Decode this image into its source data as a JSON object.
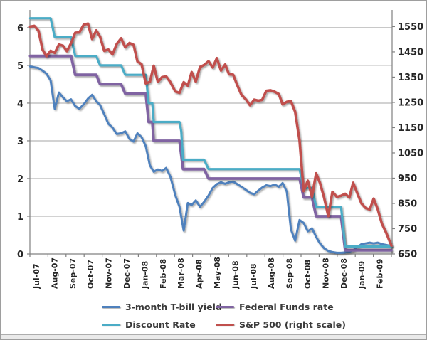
{
  "chart_data": {
    "type": "line",
    "title": "",
    "x_axis": {
      "tick_labels": [
        "Jul-07",
        "Aug-07",
        "Sep-07",
        "Oct-07",
        "Nov-07",
        "Dec-07",
        "Jan-08",
        "Feb-08",
        "Mar-08",
        "Apr-08",
        "May-08",
        "Jun-08",
        "Jul-08",
        "Aug-08",
        "Sep-08",
        "Oct-08",
        "Nov-08",
        "Dec-08",
        "Jan-09",
        "Feb-09"
      ]
    },
    "left_axis": {
      "min": 0,
      "max": 6.47,
      "ticks": [
        0,
        1,
        2,
        3,
        4,
        5,
        6
      ]
    },
    "right_axis": {
      "min": 650,
      "max": 1616,
      "ticks": [
        650,
        750,
        850,
        950,
        1050,
        1150,
        1250,
        1350,
        1450,
        1550
      ]
    },
    "grid": "horizontal",
    "legend": {
      "position": "bottom",
      "layout": [
        [
          0,
          1
        ],
        [
          2,
          3
        ]
      ]
    },
    "series": [
      {
        "name": "3-month T-bill yield",
        "color": "#4F81BD",
        "axis": "left",
        "points": [
          [
            "2007-07-06",
            4.97
          ],
          [
            "2007-07-13",
            4.95
          ],
          [
            "2007-07-20",
            4.93
          ],
          [
            "2007-07-27",
            4.86
          ],
          [
            "2007-08-03",
            4.78
          ],
          [
            "2007-08-10",
            4.6
          ],
          [
            "2007-08-17",
            3.85
          ],
          [
            "2007-08-24",
            4.28
          ],
          [
            "2007-08-31",
            4.15
          ],
          [
            "2007-09-07",
            4.05
          ],
          [
            "2007-09-14",
            4.1
          ],
          [
            "2007-09-21",
            3.92
          ],
          [
            "2007-09-28",
            3.85
          ],
          [
            "2007-10-05",
            3.97
          ],
          [
            "2007-10-12",
            4.12
          ],
          [
            "2007-10-19",
            4.22
          ],
          [
            "2007-10-26",
            4.05
          ],
          [
            "2007-11-02",
            3.95
          ],
          [
            "2007-11-09",
            3.7
          ],
          [
            "2007-11-16",
            3.45
          ],
          [
            "2007-11-23",
            3.35
          ],
          [
            "2007-11-30",
            3.18
          ],
          [
            "2007-12-07",
            3.2
          ],
          [
            "2007-12-14",
            3.25
          ],
          [
            "2007-12-21",
            3.05
          ],
          [
            "2007-12-28",
            2.98
          ],
          [
            "2008-01-04",
            3.2
          ],
          [
            "2008-01-11",
            3.1
          ],
          [
            "2008-01-18",
            2.86
          ],
          [
            "2008-01-25",
            2.35
          ],
          [
            "2008-02-01",
            2.18
          ],
          [
            "2008-02-08",
            2.24
          ],
          [
            "2008-02-15",
            2.2
          ],
          [
            "2008-02-22",
            2.28
          ],
          [
            "2008-02-29",
            2.05
          ],
          [
            "2008-03-07",
            1.55
          ],
          [
            "2008-03-14",
            1.25
          ],
          [
            "2008-03-21",
            0.62
          ],
          [
            "2008-03-28",
            1.35
          ],
          [
            "2008-04-04",
            1.3
          ],
          [
            "2008-04-11",
            1.42
          ],
          [
            "2008-04-18",
            1.25
          ],
          [
            "2008-04-25",
            1.38
          ],
          [
            "2008-05-02",
            1.55
          ],
          [
            "2008-05-09",
            1.75
          ],
          [
            "2008-05-16",
            1.85
          ],
          [
            "2008-05-23",
            1.9
          ],
          [
            "2008-05-30",
            1.86
          ],
          [
            "2008-06-06",
            1.9
          ],
          [
            "2008-06-13",
            1.92
          ],
          [
            "2008-06-20",
            1.85
          ],
          [
            "2008-06-27",
            1.78
          ],
          [
            "2008-07-04",
            1.7
          ],
          [
            "2008-07-11",
            1.62
          ],
          [
            "2008-07-18",
            1.58
          ],
          [
            "2008-07-25",
            1.68
          ],
          [
            "2008-08-01",
            1.76
          ],
          [
            "2008-08-08",
            1.82
          ],
          [
            "2008-08-15",
            1.8
          ],
          [
            "2008-08-22",
            1.84
          ],
          [
            "2008-08-29",
            1.78
          ],
          [
            "2008-09-05",
            1.88
          ],
          [
            "2008-09-12",
            1.65
          ],
          [
            "2008-09-19",
            0.65
          ],
          [
            "2008-09-26",
            0.35
          ],
          [
            "2008-10-03",
            0.9
          ],
          [
            "2008-10-10",
            0.82
          ],
          [
            "2008-10-17",
            0.6
          ],
          [
            "2008-10-24",
            0.68
          ],
          [
            "2008-10-31",
            0.45
          ],
          [
            "2008-11-07",
            0.28
          ],
          [
            "2008-11-14",
            0.15
          ],
          [
            "2008-11-21",
            0.08
          ],
          [
            "2008-11-28",
            0.05
          ],
          [
            "2008-12-05",
            0.03
          ],
          [
            "2008-12-12",
            0.03
          ],
          [
            "2008-12-19",
            0.04
          ],
          [
            "2008-12-26",
            0.06
          ],
          [
            "2009-01-02",
            0.1
          ],
          [
            "2009-01-09",
            0.18
          ],
          [
            "2009-01-16",
            0.26
          ],
          [
            "2009-01-23",
            0.28
          ],
          [
            "2009-01-30",
            0.3
          ],
          [
            "2009-02-06",
            0.28
          ],
          [
            "2009-02-13",
            0.3
          ],
          [
            "2009-02-20",
            0.26
          ],
          [
            "2009-02-27",
            0.24
          ],
          [
            "2009-03-06",
            0.21
          ]
        ]
      },
      {
        "name": "Federal Funds rate",
        "color": "#8064A2",
        "axis": "left",
        "points": [
          [
            "2007-07-06",
            5.25
          ],
          [
            "2007-09-14",
            5.25
          ],
          [
            "2007-09-21",
            4.75
          ],
          [
            "2007-10-26",
            4.75
          ],
          [
            "2007-11-02",
            4.5
          ],
          [
            "2007-12-07",
            4.5
          ],
          [
            "2007-12-14",
            4.25
          ],
          [
            "2008-01-18",
            4.25
          ],
          [
            "2008-01-23",
            3.5
          ],
          [
            "2008-01-29",
            3.5
          ],
          [
            "2008-02-01",
            3.0
          ],
          [
            "2008-03-14",
            3.0
          ],
          [
            "2008-03-20",
            2.25
          ],
          [
            "2008-04-25",
            2.25
          ],
          [
            "2008-05-02",
            2.0
          ],
          [
            "2008-10-03",
            2.0
          ],
          [
            "2008-10-10",
            1.5
          ],
          [
            "2008-10-24",
            1.5
          ],
          [
            "2008-10-31",
            1.0
          ],
          [
            "2008-12-12",
            1.0
          ],
          [
            "2008-12-19",
            0.1
          ],
          [
            "2009-03-06",
            0.1
          ]
        ]
      },
      {
        "name": "Discount Rate",
        "color": "#4BACC6",
        "axis": "left",
        "points": [
          [
            "2007-07-06",
            6.25
          ],
          [
            "2007-08-10",
            6.25
          ],
          [
            "2007-08-17",
            5.75
          ],
          [
            "2007-09-14",
            5.75
          ],
          [
            "2007-09-21",
            5.25
          ],
          [
            "2007-10-26",
            5.25
          ],
          [
            "2007-11-02",
            5.0
          ],
          [
            "2007-12-07",
            5.0
          ],
          [
            "2007-12-14",
            4.75
          ],
          [
            "2008-01-18",
            4.75
          ],
          [
            "2008-01-23",
            4.0
          ],
          [
            "2008-01-29",
            4.0
          ],
          [
            "2008-02-01",
            3.5
          ],
          [
            "2008-03-14",
            3.5
          ],
          [
            "2008-03-17",
            3.25
          ],
          [
            "2008-03-20",
            2.5
          ],
          [
            "2008-04-25",
            2.5
          ],
          [
            "2008-05-02",
            2.25
          ],
          [
            "2008-10-03",
            2.25
          ],
          [
            "2008-10-10",
            1.75
          ],
          [
            "2008-10-24",
            1.75
          ],
          [
            "2008-10-31",
            1.25
          ],
          [
            "2008-12-12",
            1.25
          ],
          [
            "2008-12-19",
            0.2
          ],
          [
            "2009-03-06",
            0.2
          ]
        ]
      },
      {
        "name": "S&P 500 (right scale)",
        "color": "#C0504D",
        "axis": "right",
        "points": [
          [
            "2007-07-06",
            1550
          ],
          [
            "2007-07-13",
            1553
          ],
          [
            "2007-07-20",
            1534
          ],
          [
            "2007-07-27",
            1458
          ],
          [
            "2007-08-03",
            1433
          ],
          [
            "2007-08-10",
            1454
          ],
          [
            "2007-08-17",
            1446
          ],
          [
            "2007-08-24",
            1479
          ],
          [
            "2007-08-31",
            1474
          ],
          [
            "2007-09-07",
            1453
          ],
          [
            "2007-09-14",
            1484
          ],
          [
            "2007-09-21",
            1526
          ],
          [
            "2007-09-28",
            1527
          ],
          [
            "2007-10-05",
            1558
          ],
          [
            "2007-10-12",
            1562
          ],
          [
            "2007-10-19",
            1501
          ],
          [
            "2007-10-26",
            1535
          ],
          [
            "2007-11-02",
            1510
          ],
          [
            "2007-11-09",
            1454
          ],
          [
            "2007-11-16",
            1459
          ],
          [
            "2007-11-23",
            1440
          ],
          [
            "2007-11-30",
            1481
          ],
          [
            "2007-12-07",
            1504
          ],
          [
            "2007-12-14",
            1468
          ],
          [
            "2007-12-21",
            1485
          ],
          [
            "2007-12-28",
            1478
          ],
          [
            "2008-01-04",
            1412
          ],
          [
            "2008-01-11",
            1401
          ],
          [
            "2008-01-18",
            1325
          ],
          [
            "2008-01-25",
            1331
          ],
          [
            "2008-02-01",
            1395
          ],
          [
            "2008-02-08",
            1331
          ],
          [
            "2008-02-15",
            1350
          ],
          [
            "2008-02-22",
            1353
          ],
          [
            "2008-02-29",
            1330
          ],
          [
            "2008-03-07",
            1293
          ],
          [
            "2008-03-14",
            1288
          ],
          [
            "2008-03-21",
            1330
          ],
          [
            "2008-03-28",
            1316
          ],
          [
            "2008-04-04",
            1370
          ],
          [
            "2008-04-11",
            1332
          ],
          [
            "2008-04-18",
            1390
          ],
          [
            "2008-04-25",
            1398
          ],
          [
            "2008-05-02",
            1413
          ],
          [
            "2008-05-09",
            1388
          ],
          [
            "2008-05-16",
            1425
          ],
          [
            "2008-05-23",
            1376
          ],
          [
            "2008-05-30",
            1400
          ],
          [
            "2008-06-06",
            1361
          ],
          [
            "2008-06-13",
            1360
          ],
          [
            "2008-06-20",
            1318
          ],
          [
            "2008-06-27",
            1280
          ],
          [
            "2008-07-04",
            1262
          ],
          [
            "2008-07-11",
            1239
          ],
          [
            "2008-07-18",
            1261
          ],
          [
            "2008-07-25",
            1257
          ],
          [
            "2008-08-01",
            1260
          ],
          [
            "2008-08-08",
            1296
          ],
          [
            "2008-08-15",
            1298
          ],
          [
            "2008-08-22",
            1292
          ],
          [
            "2008-08-29",
            1283
          ],
          [
            "2008-09-05",
            1242
          ],
          [
            "2008-09-12",
            1252
          ],
          [
            "2008-09-19",
            1255
          ],
          [
            "2008-09-26",
            1213
          ],
          [
            "2008-10-03",
            1099
          ],
          [
            "2008-10-10",
            899
          ],
          [
            "2008-10-17",
            940
          ],
          [
            "2008-10-24",
            877
          ],
          [
            "2008-10-31",
            969
          ],
          [
            "2008-11-07",
            931
          ],
          [
            "2008-11-14",
            873
          ],
          [
            "2008-11-21",
            800
          ],
          [
            "2008-11-28",
            896
          ],
          [
            "2008-12-05",
            876
          ],
          [
            "2008-12-12",
            880
          ],
          [
            "2008-12-19",
            888
          ],
          [
            "2008-12-26",
            873
          ],
          [
            "2009-01-02",
            932
          ],
          [
            "2009-01-09",
            890
          ],
          [
            "2009-01-16",
            850
          ],
          [
            "2009-01-23",
            832
          ],
          [
            "2009-01-30",
            826
          ],
          [
            "2009-02-06",
            869
          ],
          [
            "2009-02-13",
            827
          ],
          [
            "2009-02-20",
            770
          ],
          [
            "2009-02-27",
            735
          ],
          [
            "2009-03-06",
            683
          ]
        ]
      }
    ]
  },
  "colors": {
    "gridline": "#a6a6a6",
    "axis_line": "#808080",
    "axis_text": "#262626",
    "legend_text": "#3a3a3a",
    "background": "#ffffff",
    "frame_border": "#9e9e9e"
  }
}
